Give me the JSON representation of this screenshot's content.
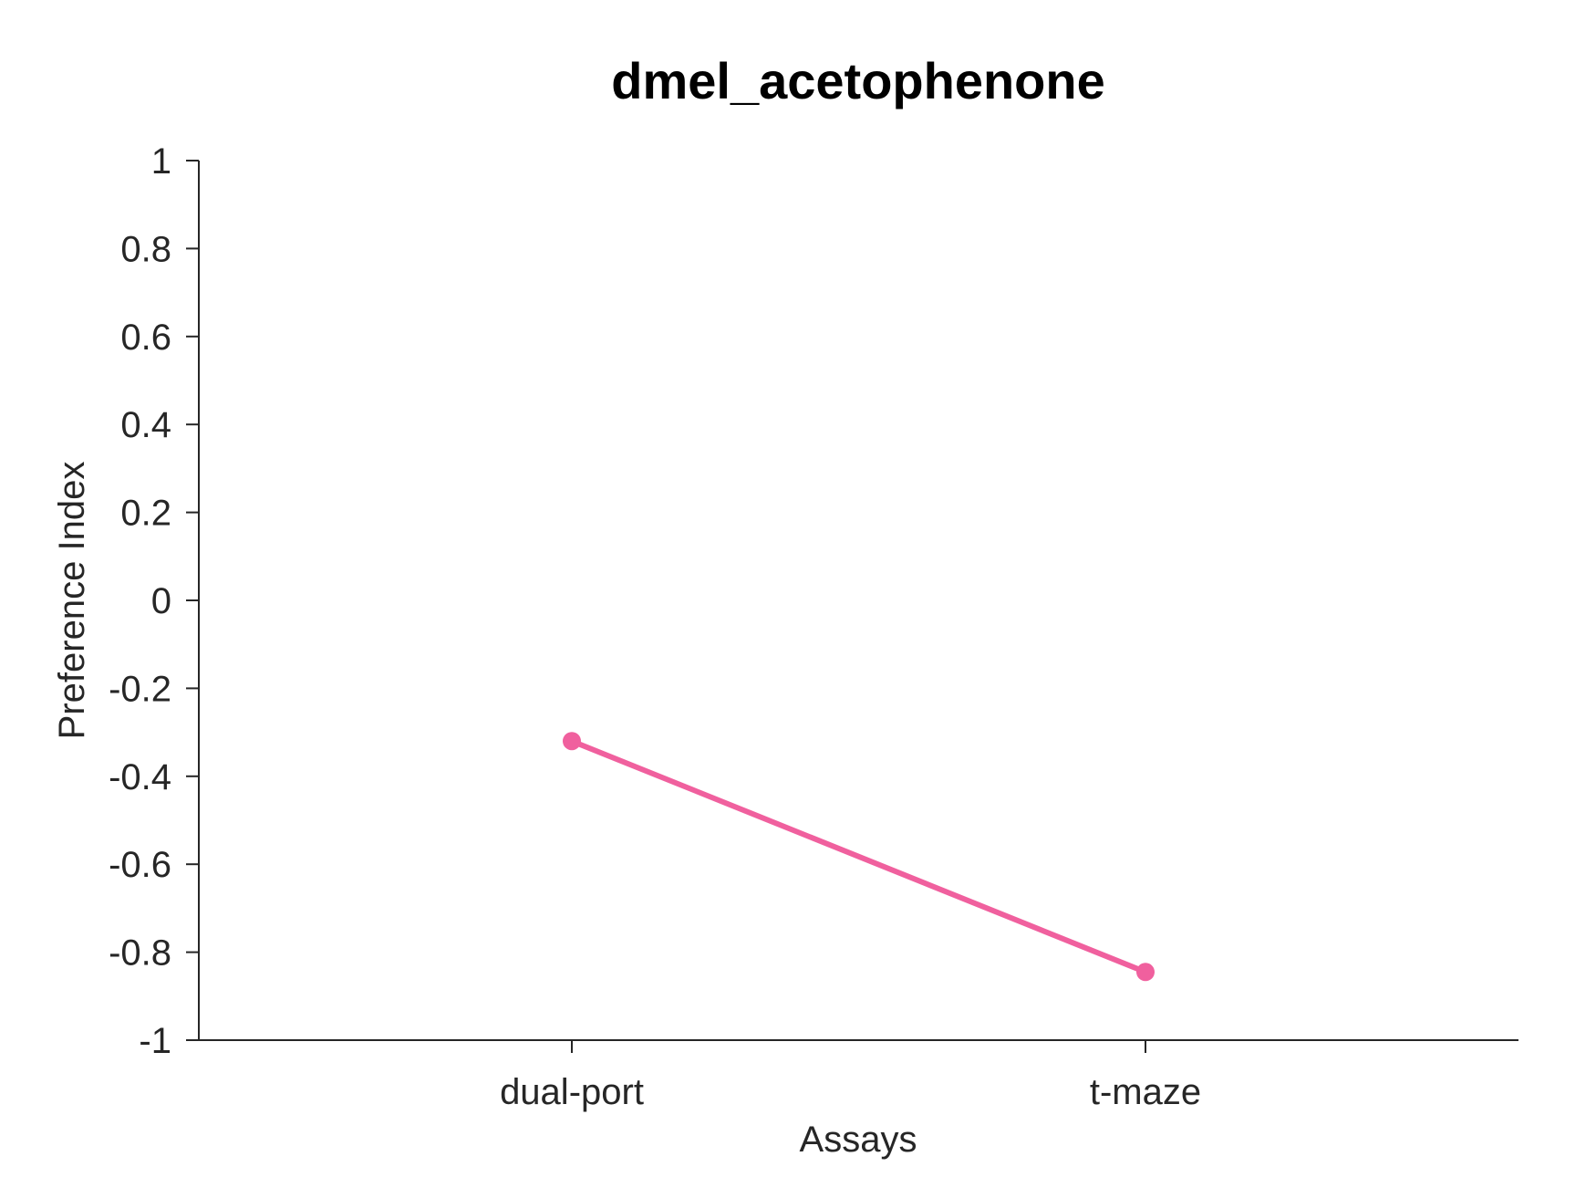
{
  "chart_data": {
    "type": "line",
    "title": "dmel_acetophenone",
    "xlabel": "Assays",
    "ylabel": "Preference Index",
    "categories": [
      "dual-port",
      "t-maze"
    ],
    "series": [
      {
        "values": [
          -0.32,
          -0.845
        ],
        "color": "#f0609e"
      }
    ],
    "ylim": [
      -1,
      1
    ],
    "yticks": [
      1,
      0.8,
      0.6,
      0.4,
      0.2,
      0,
      -0.2,
      -0.4,
      -0.6,
      -0.8,
      -1
    ],
    "ytick_labels": [
      "1",
      "0.8",
      "0.6",
      "0.4",
      "0.2",
      "0",
      "-0.2",
      "-0.4",
      "-0.6",
      "-0.8",
      "-1"
    ],
    "grid": false,
    "legend": "none",
    "axis_color": "#262626"
  }
}
